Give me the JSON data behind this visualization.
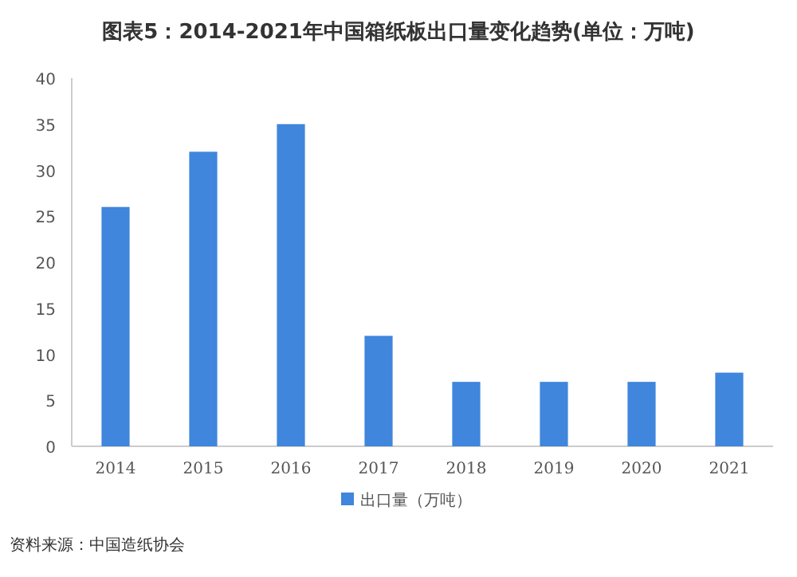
{
  "chart_data": {
    "type": "bar",
    "title": "图表5：2014-2021年中国箱纸板出口量变化趋势(单位：万吨)",
    "categories": [
      "2014",
      "2015",
      "2016",
      "2017",
      "2018",
      "2019",
      "2020",
      "2021"
    ],
    "series": [
      {
        "name": "出口量（万吨）",
        "color": "#3f86dc",
        "values": [
          26,
          32,
          35,
          12,
          7,
          7,
          7,
          8
        ]
      }
    ],
    "ylim": [
      0,
      40
    ],
    "yticks": [
      0,
      5,
      10,
      15,
      20,
      25,
      30,
      35,
      40
    ],
    "grid": false,
    "legend": "bottom",
    "annotations": [
      "资料来源：中国造纸协会"
    ]
  }
}
